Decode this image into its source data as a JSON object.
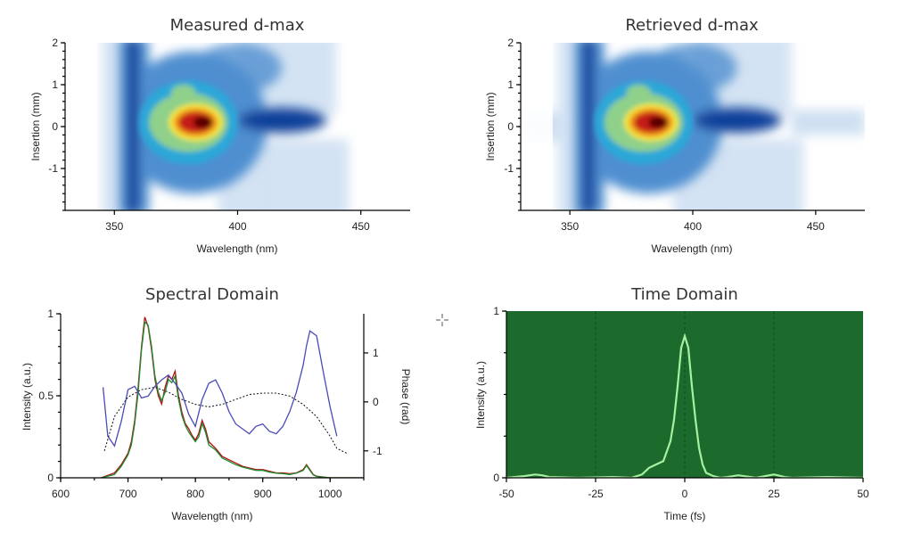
{
  "chart_data": [
    {
      "type": "heatmap",
      "title": "Measured d-max",
      "xlabel": "Wavelength (nm)",
      "ylabel": "Insertion (mm)",
      "xlim": [
        330,
        470
      ],
      "ylim": [
        -2,
        2
      ],
      "xticks": [
        350,
        400,
        450
      ],
      "yticks": [
        -1,
        0,
        1,
        2
      ],
      "colormap": [
        "#ffffff",
        "#cfe0f2",
        "#4f8fd0",
        "#0b3f9a",
        "#2aa7d8",
        "#8fd08a",
        "#f4e83a",
        "#f39a1c",
        "#c41e14",
        "#5a0000"
      ],
      "peak": {
        "wavelength": 383,
        "insertion": 0.1
      }
    },
    {
      "type": "heatmap",
      "title": "Retrieved d-max",
      "xlabel": "Wavelength (nm)",
      "ylabel": "Insertion (mm)",
      "xlim": [
        330,
        470
      ],
      "ylim": [
        -2,
        2
      ],
      "xticks": [
        350,
        400,
        450
      ],
      "yticks": [
        -1,
        0,
        1,
        2
      ],
      "colormap": [
        "#ffffff",
        "#cfe0f2",
        "#4f8fd0",
        "#0b3f9a",
        "#2aa7d8",
        "#8fd08a",
        "#f4e83a",
        "#f39a1c",
        "#c41e14",
        "#5a0000"
      ],
      "peak": {
        "wavelength": 383,
        "insertion": 0.1
      }
    },
    {
      "type": "line",
      "title": "Spectral Domain",
      "xlabel": "Wavelength (nm)",
      "ylabel": "Intensity (a.u.)",
      "y2label": "Phase (rad)",
      "xlim": [
        600,
        1050
      ],
      "ylim": [
        0,
        1.0
      ],
      "y2lim": [
        -1.55,
        1.8
      ],
      "xticks": [
        600,
        700,
        800,
        900,
        1000
      ],
      "yticks": [
        0,
        0.5,
        1
      ],
      "y2ticks": [
        -1,
        0,
        1
      ],
      "series": [
        {
          "axis": "left",
          "color": "#b01010",
          "x": [
            660,
            680,
            690,
            700,
            705,
            710,
            715,
            720,
            725,
            730,
            735,
            740,
            745,
            750,
            755,
            760,
            765,
            770,
            775,
            780,
            785,
            790,
            795,
            800,
            805,
            810,
            815,
            820,
            830,
            840,
            850,
            860,
            870,
            880,
            890,
            900,
            910,
            920,
            930,
            940,
            950,
            960,
            965,
            970,
            975,
            980,
            990,
            1000,
            1050
          ],
          "values": [
            0,
            0.03,
            0.08,
            0.15,
            0.22,
            0.35,
            0.55,
            0.8,
            0.98,
            0.92,
            0.78,
            0.6,
            0.5,
            0.45,
            0.55,
            0.62,
            0.6,
            0.65,
            0.5,
            0.4,
            0.33,
            0.3,
            0.26,
            0.23,
            0.27,
            0.35,
            0.3,
            0.22,
            0.18,
            0.13,
            0.11,
            0.09,
            0.07,
            0.06,
            0.05,
            0.05,
            0.04,
            0.03,
            0.03,
            0.025,
            0.03,
            0.05,
            0.08,
            0.05,
            0.02,
            0.01,
            0.005,
            0,
            0
          ]
        },
        {
          "axis": "left",
          "color": "#1e8a2e",
          "x": [
            660,
            680,
            690,
            700,
            705,
            710,
            715,
            720,
            725,
            730,
            735,
            740,
            745,
            750,
            755,
            760,
            765,
            770,
            775,
            780,
            785,
            790,
            795,
            800,
            805,
            810,
            815,
            820,
            830,
            840,
            850,
            860,
            870,
            880,
            890,
            900,
            910,
            920,
            930,
            940,
            950,
            960,
            965,
            970,
            975,
            980,
            990,
            1000,
            1050
          ],
          "values": [
            0,
            0.02,
            0.07,
            0.14,
            0.2,
            0.33,
            0.52,
            0.78,
            0.95,
            0.93,
            0.8,
            0.62,
            0.52,
            0.47,
            0.52,
            0.6,
            0.58,
            0.62,
            0.48,
            0.38,
            0.32,
            0.28,
            0.25,
            0.22,
            0.25,
            0.33,
            0.28,
            0.2,
            0.17,
            0.12,
            0.1,
            0.08,
            0.065,
            0.055,
            0.045,
            0.045,
            0.035,
            0.028,
            0.025,
            0.02,
            0.028,
            0.045,
            0.075,
            0.045,
            0.018,
            0.008,
            0.004,
            0,
            0
          ]
        },
        {
          "axis": "right",
          "color": "#4a4ab8",
          "x": [
            663,
            670,
            680,
            690,
            700,
            710,
            720,
            730,
            740,
            750,
            760,
            770,
            780,
            790,
            800,
            810,
            820,
            830,
            840,
            850,
            860,
            870,
            880,
            890,
            900,
            910,
            920,
            930,
            940,
            950,
            960,
            965,
            970,
            980,
            990,
            1000,
            1010
          ],
          "values": [
            0.3,
            -0.7,
            -0.9,
            -0.4,
            0.25,
            0.32,
            0.08,
            0.12,
            0.32,
            0.45,
            0.55,
            0.38,
            0.18,
            -0.25,
            -0.5,
            0.05,
            0.38,
            0.45,
            0.18,
            -0.2,
            -0.45,
            -0.55,
            -0.65,
            -0.5,
            -0.45,
            -0.6,
            -0.65,
            -0.5,
            -0.2,
            0.2,
            0.75,
            1.15,
            1.45,
            1.35,
            0.6,
            -0.1,
            -0.7
          ]
        },
        {
          "axis": "right",
          "color": "#222222",
          "dashed": true,
          "x": [
            665,
            680,
            700,
            720,
            740,
            760,
            780,
            800,
            820,
            840,
            860,
            880,
            900,
            920,
            940,
            960,
            980,
            1000,
            1010,
            1025
          ],
          "values": [
            -1.0,
            -0.3,
            0.1,
            0.25,
            0.3,
            0.2,
            0.05,
            -0.05,
            -0.1,
            -0.05,
            0.05,
            0.15,
            0.18,
            0.18,
            0.12,
            -0.05,
            -0.3,
            -0.7,
            -0.95,
            -1.05
          ]
        }
      ]
    },
    {
      "type": "line",
      "title": "Time Domain",
      "xlabel": "Time (fs)",
      "ylabel": "Intensity (a.u.)",
      "xlim": [
        -50,
        50
      ],
      "ylim": [
        0,
        1
      ],
      "xticks": [
        -50,
        -25,
        0,
        25,
        50
      ],
      "yticks": [
        0,
        1
      ],
      "background": "#1c6a2c",
      "grid": true,
      "series": [
        {
          "color": "#a8f0a0",
          "x": [
            -50,
            -45,
            -42,
            -40,
            -38,
            -30,
            -20,
            -15,
            -12,
            -10,
            -8,
            -6,
            -4,
            -3,
            -2,
            -1,
            0,
            1,
            2,
            3,
            4,
            5,
            6,
            8,
            10,
            12,
            15,
            20,
            25,
            28,
            30,
            40,
            50
          ],
          "values": [
            0.0,
            0.01,
            0.02,
            0.015,
            0.005,
            0.0,
            0.005,
            0.0,
            0.02,
            0.06,
            0.08,
            0.1,
            0.22,
            0.35,
            0.55,
            0.78,
            0.85,
            0.78,
            0.55,
            0.35,
            0.18,
            0.08,
            0.03,
            0.01,
            0.0,
            0.005,
            0.015,
            0.0,
            0.02,
            0.005,
            0.0,
            0.005,
            0.0
          ]
        }
      ]
    }
  ]
}
